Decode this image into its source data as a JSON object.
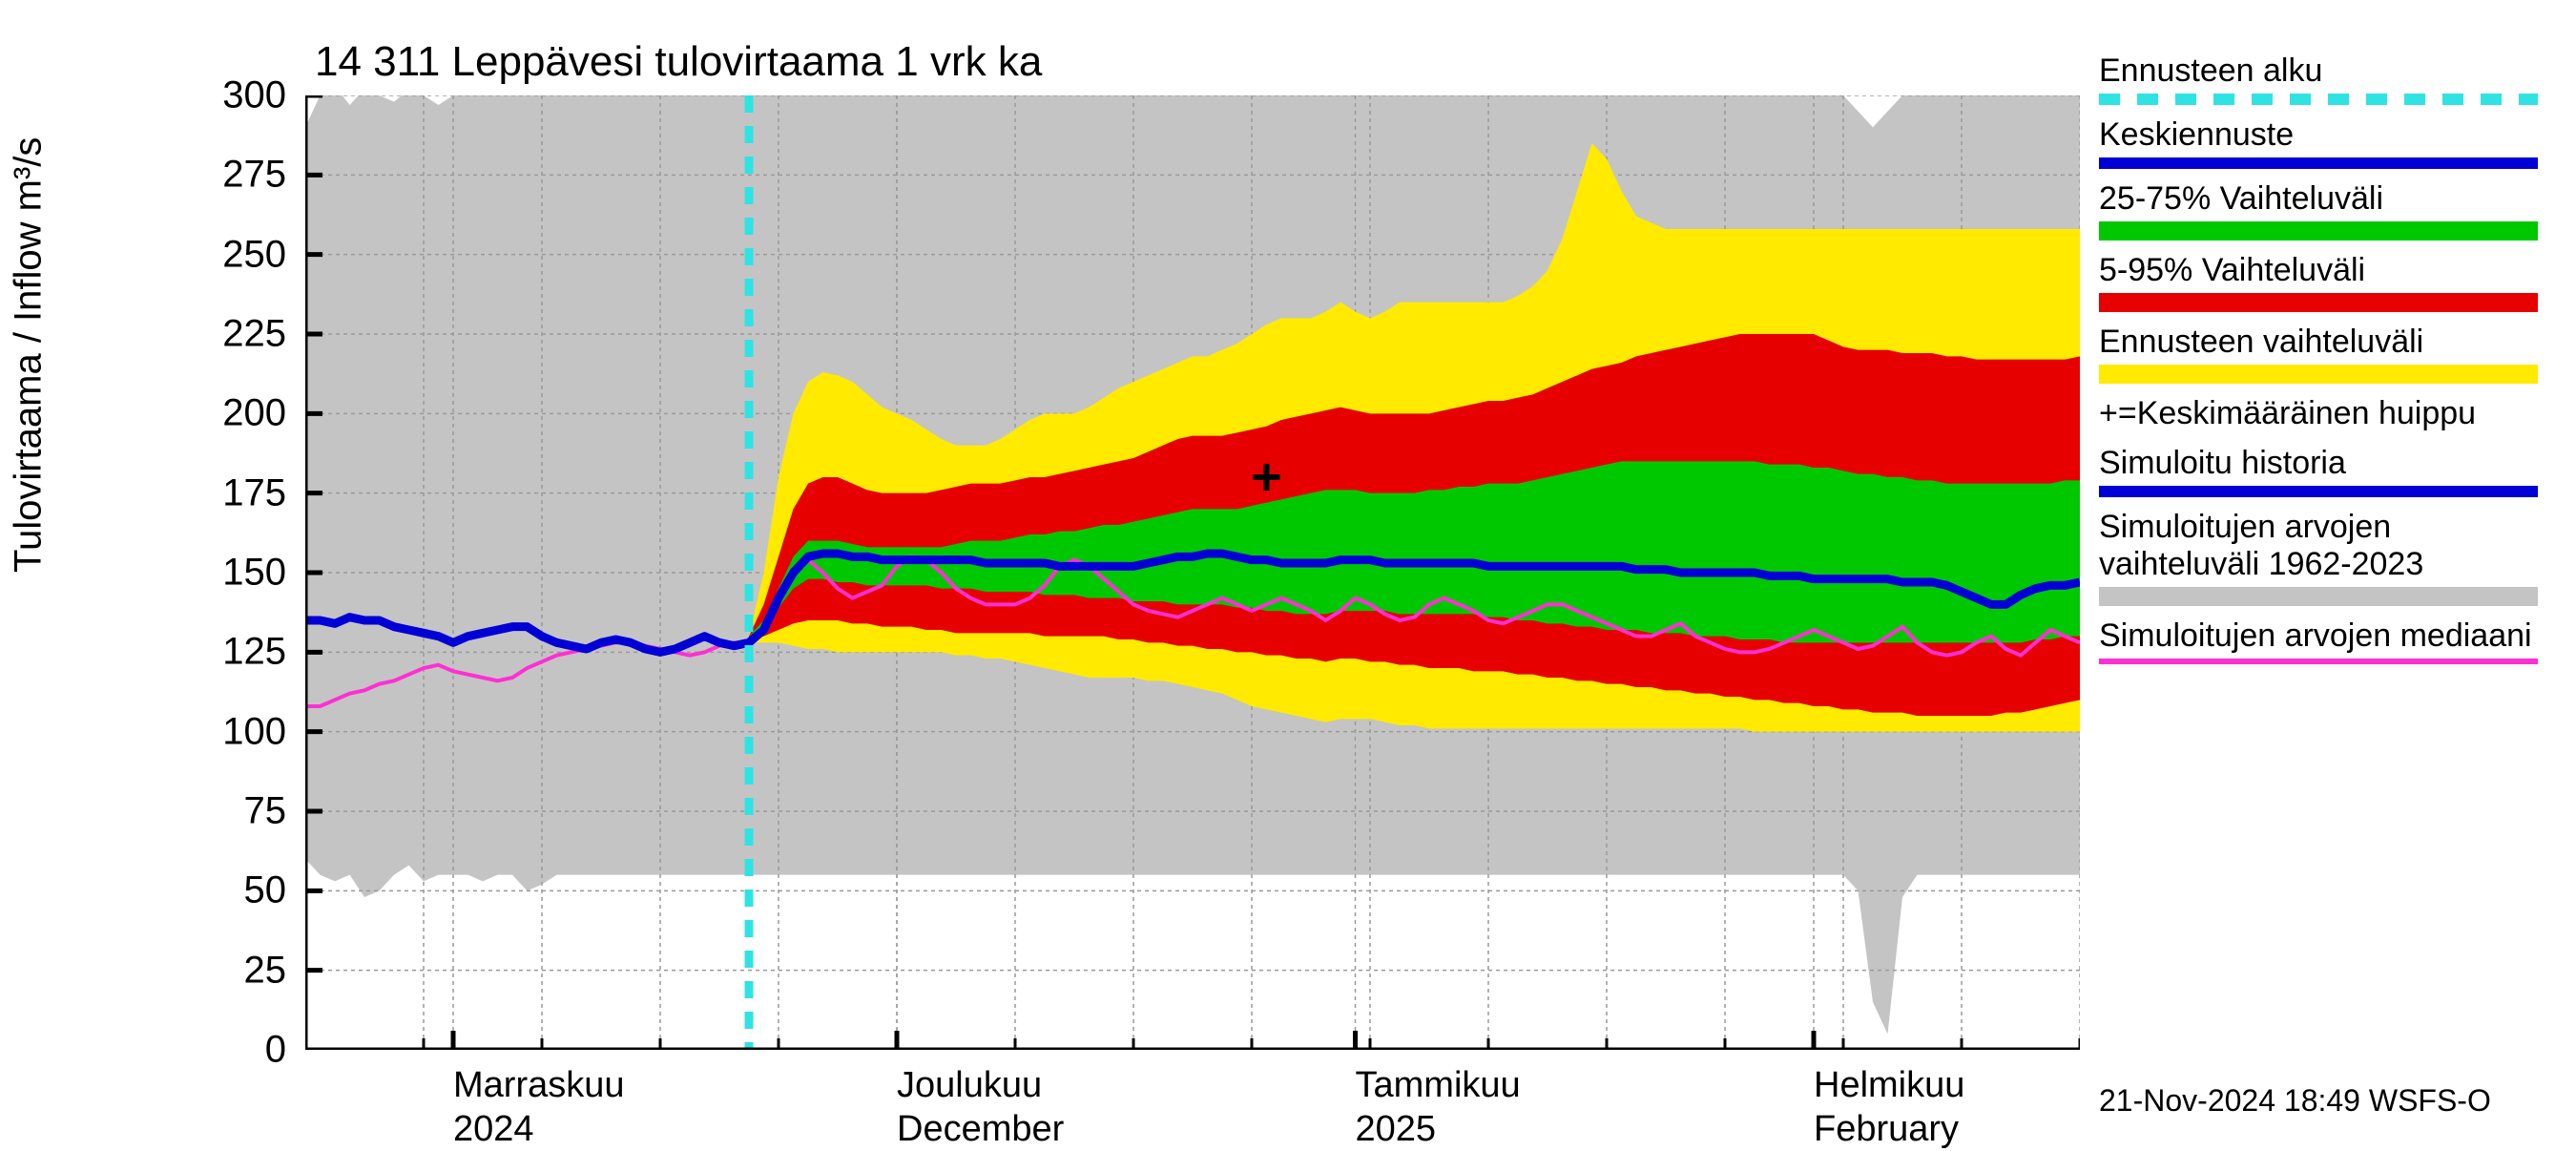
{
  "chart": {
    "type": "area+line",
    "title": "14 311 Leppävesi tulovirtaama 1 vrk ka",
    "ylabel": "Tulovirtaama / Inflow    m³/s",
    "title_fontsize": 44,
    "label_fontsize": 40,
    "tick_fontsize": 40,
    "background_color": "#ffffff",
    "grid_color": "#9a9a9a",
    "grid_dash": "4,4",
    "axis_color": "#000000",
    "ylim": [
      0,
      300
    ],
    "ytick_step": 25,
    "x_count": 121,
    "forecast_start_index": 30,
    "x_major_ticks": [
      {
        "index": 10,
        "line1": "Marraskuu",
        "line2": "2024"
      },
      {
        "index": 40,
        "line1": "Joulukuu",
        "line2": "December"
      },
      {
        "index": 71,
        "line1": "Tammikuu",
        "line2": "2025"
      },
      {
        "index": 102,
        "line1": "Helmikuu",
        "line2": "February"
      }
    ],
    "minor_tick_every": 8,
    "colors": {
      "forecast_start_line": "#2fe3e3",
      "mean_forecast": "#0000d6",
      "range_25_75": "#00c800",
      "range_5_95": "#e60000",
      "range_full": "#ffea00",
      "historical_band": "#c4c4c4",
      "median": "#ff2fd4",
      "peak_marker": "#000000"
    },
    "line_widths": {
      "mean_forecast": 9,
      "median": 4,
      "forecast_start": 9
    },
    "peak_marker": {
      "index": 65,
      "value": 180
    },
    "historical_band": {
      "upper": [
        290,
        300,
        303,
        297,
        302,
        300,
        298,
        302,
        300,
        297,
        300,
        300,
        300,
        300,
        300,
        300,
        300,
        300,
        300,
        300,
        300,
        300,
        300,
        300,
        300,
        300,
        300,
        300,
        300,
        300,
        300,
        300,
        300,
        300,
        300,
        300,
        300,
        300,
        300,
        300,
        300,
        300,
        300,
        300,
        300,
        300,
        300,
        300,
        300,
        300,
        300,
        300,
        300,
        300,
        300,
        300,
        300,
        300,
        300,
        300,
        300,
        300,
        300,
        300,
        300,
        300,
        300,
        300,
        300,
        300,
        300,
        300,
        300,
        300,
        300,
        300,
        300,
        300,
        300,
        300,
        300,
        300,
        300,
        300,
        300,
        300,
        300,
        300,
        300,
        300,
        300,
        300,
        300,
        300,
        300,
        300,
        300,
        300,
        300,
        300,
        300,
        300,
        300,
        300,
        300,
        295,
        290,
        295,
        300,
        300,
        300,
        300,
        300,
        300,
        300,
        300,
        300,
        300,
        300,
        300,
        300
      ],
      "lower": [
        60,
        55,
        53,
        55,
        48,
        50,
        55,
        58,
        53,
        55,
        55,
        55,
        53,
        55,
        55,
        50,
        52,
        55,
        55,
        55,
        55,
        55,
        55,
        55,
        55,
        55,
        55,
        55,
        55,
        55,
        55,
        55,
        55,
        55,
        55,
        55,
        55,
        55,
        55,
        55,
        55,
        55,
        55,
        55,
        55,
        55,
        55,
        55,
        55,
        55,
        55,
        55,
        55,
        55,
        55,
        55,
        55,
        55,
        55,
        55,
        55,
        55,
        55,
        55,
        55,
        55,
        55,
        55,
        55,
        55,
        55,
        55,
        55,
        55,
        55,
        55,
        55,
        55,
        55,
        55,
        55,
        55,
        55,
        55,
        55,
        55,
        55,
        55,
        55,
        55,
        55,
        55,
        55,
        55,
        55,
        55,
        55,
        55,
        55,
        55,
        55,
        55,
        55,
        55,
        55,
        50,
        15,
        5,
        48,
        55,
        55,
        55,
        55,
        55,
        55,
        55,
        55,
        55,
        55,
        55,
        55
      ]
    },
    "range_full_band": {
      "upper": [
        0,
        0,
        0,
        0,
        0,
        0,
        0,
        0,
        0,
        0,
        0,
        0,
        0,
        0,
        0,
        0,
        0,
        0,
        0,
        0,
        0,
        0,
        0,
        0,
        0,
        0,
        0,
        0,
        0,
        0,
        130,
        150,
        180,
        200,
        210,
        213,
        212,
        210,
        206,
        202,
        200,
        198,
        195,
        192,
        190,
        190,
        190,
        192,
        195,
        198,
        200,
        200,
        200,
        202,
        205,
        208,
        210,
        212,
        214,
        216,
        218,
        218,
        220,
        222,
        225,
        228,
        230,
        230,
        230,
        232,
        235,
        232,
        230,
        232,
        235,
        235,
        235,
        235,
        235,
        235,
        235,
        235,
        237,
        240,
        245,
        255,
        270,
        285,
        280,
        270,
        262,
        260,
        258,
        258,
        258,
        258,
        258,
        258,
        258,
        258,
        258,
        258,
        258,
        258,
        258,
        258,
        258,
        258,
        258,
        258,
        258,
        258,
        258,
        258,
        258,
        258,
        258,
        258,
        258,
        258,
        258
      ],
      "lower": [
        0,
        0,
        0,
        0,
        0,
        0,
        0,
        0,
        0,
        0,
        0,
        0,
        0,
        0,
        0,
        0,
        0,
        0,
        0,
        0,
        0,
        0,
        0,
        0,
        0,
        0,
        0,
        0,
        0,
        0,
        128,
        128,
        128,
        127,
        126,
        126,
        125,
        125,
        125,
        125,
        125,
        125,
        125,
        125,
        124,
        124,
        123,
        123,
        122,
        121,
        120,
        119,
        118,
        117,
        117,
        117,
        117,
        116,
        116,
        115,
        114,
        113,
        112,
        110,
        108,
        107,
        106,
        105,
        104,
        103,
        104,
        104,
        104,
        103,
        102,
        102,
        101,
        101,
        101,
        101,
        101,
        101,
        101,
        101,
        101,
        101,
        101,
        101,
        101,
        101,
        101,
        101,
        101,
        101,
        101,
        101,
        101,
        101,
        100,
        100,
        100,
        100,
        100,
        100,
        100,
        100,
        100,
        100,
        100,
        100,
        100,
        100,
        100,
        100,
        100,
        100,
        100,
        100,
        100,
        100,
        100
      ]
    },
    "range_5_95_band": {
      "upper": [
        0,
        0,
        0,
        0,
        0,
        0,
        0,
        0,
        0,
        0,
        0,
        0,
        0,
        0,
        0,
        0,
        0,
        0,
        0,
        0,
        0,
        0,
        0,
        0,
        0,
        0,
        0,
        0,
        0,
        0,
        130,
        140,
        155,
        170,
        178,
        180,
        180,
        178,
        176,
        175,
        175,
        175,
        175,
        176,
        177,
        178,
        178,
        178,
        179,
        180,
        180,
        181,
        182,
        183,
        184,
        185,
        186,
        188,
        190,
        192,
        193,
        193,
        193,
        194,
        195,
        196,
        198,
        199,
        200,
        201,
        202,
        201,
        200,
        200,
        200,
        200,
        200,
        201,
        202,
        203,
        204,
        204,
        205,
        206,
        208,
        210,
        212,
        214,
        215,
        216,
        218,
        219,
        220,
        221,
        222,
        223,
        224,
        225,
        225,
        225,
        225,
        225,
        225,
        223,
        221,
        220,
        220,
        220,
        219,
        219,
        219,
        218,
        218,
        217,
        217,
        217,
        217,
        217,
        217,
        217,
        218
      ],
      "lower": [
        0,
        0,
        0,
        0,
        0,
        0,
        0,
        0,
        0,
        0,
        0,
        0,
        0,
        0,
        0,
        0,
        0,
        0,
        0,
        0,
        0,
        0,
        0,
        0,
        0,
        0,
        0,
        0,
        0,
        0,
        129,
        130,
        132,
        134,
        135,
        135,
        135,
        134,
        134,
        133,
        133,
        133,
        132,
        132,
        131,
        131,
        131,
        131,
        131,
        131,
        130,
        130,
        130,
        130,
        130,
        129,
        129,
        128,
        128,
        127,
        127,
        126,
        126,
        125,
        125,
        124,
        124,
        123,
        123,
        122,
        123,
        123,
        122,
        122,
        121,
        121,
        120,
        120,
        120,
        119,
        119,
        119,
        118,
        118,
        117,
        117,
        116,
        116,
        115,
        115,
        114,
        114,
        113,
        113,
        112,
        112,
        111,
        111,
        110,
        110,
        109,
        109,
        108,
        108,
        107,
        107,
        106,
        106,
        106,
        105,
        105,
        105,
        105,
        105,
        105,
        106,
        106,
        107,
        108,
        109,
        110
      ]
    },
    "range_25_75_band": {
      "upper": [
        0,
        0,
        0,
        0,
        0,
        0,
        0,
        0,
        0,
        0,
        0,
        0,
        0,
        0,
        0,
        0,
        0,
        0,
        0,
        0,
        0,
        0,
        0,
        0,
        0,
        0,
        0,
        0,
        0,
        0,
        130,
        135,
        145,
        155,
        160,
        160,
        160,
        159,
        158,
        158,
        158,
        158,
        158,
        158,
        159,
        160,
        160,
        160,
        161,
        162,
        162,
        163,
        163,
        164,
        165,
        165,
        166,
        167,
        168,
        169,
        170,
        170,
        170,
        170,
        171,
        172,
        173,
        174,
        175,
        176,
        176,
        176,
        175,
        175,
        175,
        175,
        176,
        176,
        177,
        177,
        178,
        178,
        178,
        179,
        180,
        181,
        182,
        183,
        184,
        185,
        185,
        185,
        185,
        185,
        185,
        185,
        185,
        185,
        185,
        184,
        184,
        184,
        183,
        183,
        182,
        181,
        181,
        180,
        180,
        179,
        179,
        178,
        178,
        178,
        178,
        178,
        178,
        178,
        178,
        179,
        179
      ],
      "lower": [
        0,
        0,
        0,
        0,
        0,
        0,
        0,
        0,
        0,
        0,
        0,
        0,
        0,
        0,
        0,
        0,
        0,
        0,
        0,
        0,
        0,
        0,
        0,
        0,
        0,
        0,
        0,
        0,
        0,
        0,
        130,
        133,
        139,
        145,
        148,
        148,
        147,
        147,
        146,
        146,
        146,
        146,
        146,
        145,
        145,
        145,
        144,
        144,
        144,
        144,
        143,
        143,
        143,
        142,
        142,
        142,
        141,
        141,
        141,
        140,
        140,
        140,
        140,
        139,
        139,
        138,
        138,
        137,
        137,
        137,
        138,
        138,
        138,
        138,
        137,
        137,
        137,
        137,
        137,
        137,
        136,
        136,
        135,
        135,
        134,
        134,
        133,
        133,
        132,
        132,
        132,
        131,
        131,
        131,
        130,
        130,
        130,
        129,
        129,
        129,
        128,
        128,
        128,
        128,
        128,
        128,
        128,
        128,
        128,
        128,
        128,
        128,
        128,
        128,
        128,
        128,
        128,
        129,
        129,
        130,
        130
      ]
    },
    "mean_forecast": [
      135,
      135,
      134,
      136,
      135,
      135,
      133,
      132,
      131,
      130,
      128,
      130,
      131,
      132,
      133,
      133,
      130,
      128,
      127,
      126,
      128,
      129,
      128,
      126,
      125,
      126,
      128,
      130,
      128,
      127,
      128,
      132,
      142,
      150,
      155,
      156,
      156,
      155,
      155,
      154,
      154,
      154,
      154,
      154,
      154,
      154,
      153,
      153,
      153,
      153,
      153,
      152,
      152,
      152,
      152,
      152,
      152,
      153,
      154,
      155,
      155,
      156,
      156,
      155,
      154,
      154,
      153,
      153,
      153,
      153,
      154,
      154,
      154,
      153,
      153,
      153,
      153,
      153,
      153,
      153,
      152,
      152,
      152,
      152,
      152,
      152,
      152,
      152,
      152,
      152,
      151,
      151,
      151,
      150,
      150,
      150,
      150,
      150,
      150,
      149,
      149,
      149,
      148,
      148,
      148,
      148,
      148,
      148,
      147,
      147,
      147,
      146,
      144,
      142,
      140,
      140,
      143,
      145,
      146,
      146,
      147
    ],
    "median": [
      108,
      108,
      110,
      112,
      113,
      115,
      116,
      118,
      120,
      121,
      119,
      118,
      117,
      116,
      117,
      120,
      122,
      124,
      125,
      126,
      127,
      128,
      128,
      127,
      126,
      125,
      124,
      125,
      127,
      128,
      128,
      132,
      142,
      150,
      154,
      150,
      145,
      142,
      144,
      146,
      152,
      155,
      154,
      150,
      145,
      142,
      140,
      140,
      140,
      142,
      146,
      152,
      154,
      152,
      148,
      144,
      140,
      138,
      137,
      136,
      138,
      140,
      142,
      140,
      138,
      140,
      142,
      140,
      138,
      135,
      138,
      142,
      140,
      137,
      135,
      136,
      140,
      142,
      140,
      138,
      135,
      134,
      136,
      138,
      140,
      140,
      138,
      136,
      134,
      132,
      130,
      130,
      132,
      134,
      130,
      128,
      126,
      125,
      125,
      126,
      128,
      130,
      132,
      130,
      128,
      126,
      127,
      130,
      133,
      128,
      125,
      124,
      125,
      128,
      130,
      126,
      124,
      128,
      132,
      130,
      128
    ]
  },
  "legend": {
    "items": [
      {
        "label": "Ennusteen alku",
        "swatch_type": "dash",
        "color": "#2fe3e3"
      },
      {
        "label": "Keskiennuste",
        "swatch_type": "solid",
        "color": "#0000d6"
      },
      {
        "label": "25-75% Vaihteluväli",
        "swatch_type": "fill",
        "color": "#00c800"
      },
      {
        "label": "5-95% Vaihteluväli",
        "swatch_type": "fill",
        "color": "#e60000"
      },
      {
        "label": "Ennusteen vaihteluväli",
        "swatch_type": "fill",
        "color": "#ffea00"
      },
      {
        "label": "+=Keskimääräinen huippu",
        "swatch_type": "none",
        "color": "#000000"
      },
      {
        "label": "Simuloitu historia",
        "swatch_type": "solid",
        "color": "#0000d6"
      },
      {
        "label": "Simuloitujen arvojen vaihteluväli 1962-2023",
        "swatch_type": "fill",
        "color": "#c4c4c4"
      },
      {
        "label": "Simuloitujen arvojen mediaani",
        "swatch_type": "solid-thin",
        "color": "#ff2fd4"
      }
    ]
  },
  "footer": {
    "stamp": "21-Nov-2024 18:49 WSFS-O"
  }
}
